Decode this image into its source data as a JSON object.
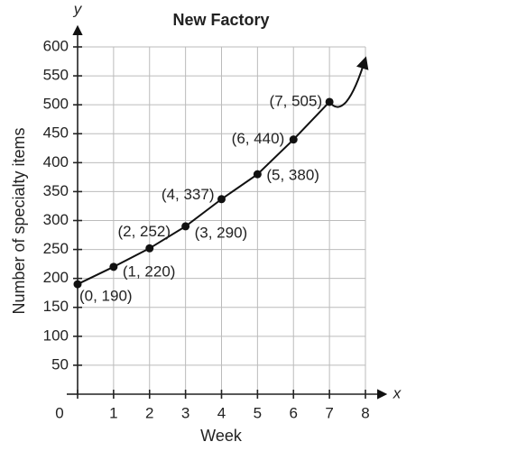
{
  "chart_data": {
    "type": "line",
    "title": "New Factory",
    "x_label": "Week",
    "y_label": "Number of specialty items",
    "x_axis_name": "x",
    "y_axis_name": "y",
    "x": [
      0,
      1,
      2,
      3,
      4,
      5,
      6,
      7
    ],
    "values": [
      190,
      220,
      252,
      290,
      337,
      380,
      440,
      505
    ],
    "value_labels": [
      "(0, 190)",
      "(1, 220)",
      "(2, 252)",
      "(3, 290)",
      "(4, 337)",
      "(5, 380)",
      "(6, 440)",
      "(7, 505)"
    ],
    "color": "#111111",
    "xlim": [
      0,
      8
    ],
    "ylim": [
      0,
      600
    ],
    "xticks": [
      0,
      1,
      2,
      3,
      4,
      5,
      6,
      7,
      8
    ],
    "yticks": [
      50,
      100,
      150,
      200,
      250,
      300,
      350,
      400,
      450,
      500,
      550,
      600
    ],
    "grid": true
  }
}
